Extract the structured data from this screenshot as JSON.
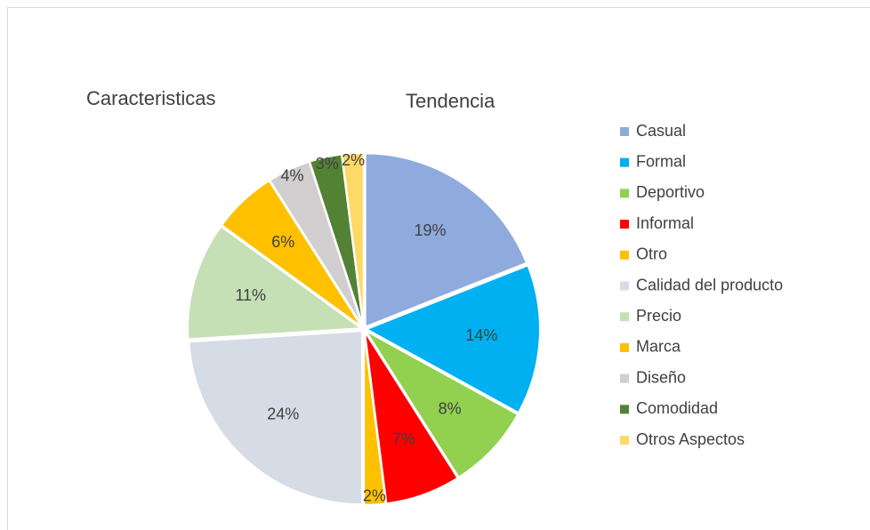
{
  "chart_data": {
    "type": "pie",
    "annotations": [
      "Caracteristicas",
      "Tendencia"
    ],
    "categories": [
      "Casual",
      "Formal",
      "Deportivo",
      "Informal",
      "Otro",
      "Calidad del producto",
      "Precio",
      "Marca",
      "Diseño",
      "Comodidad",
      "Otros Aspectos"
    ],
    "values": [
      19,
      14,
      8,
      7,
      2,
      24,
      11,
      6,
      4,
      3,
      2
    ],
    "value_labels": [
      "19%",
      "14%",
      "8%",
      "7%",
      "2%",
      "24%",
      "11%",
      "6%",
      "4%",
      "3%",
      "2%"
    ],
    "colors": [
      "#8faadc",
      "#00b0f0",
      "#92d050",
      "#ff0000",
      "#ffc000",
      "#d6dce5",
      "#c5e0b4",
      "#ffc000",
      "#d0cece",
      "#548235",
      "#ffd966"
    ],
    "legend": "right"
  }
}
